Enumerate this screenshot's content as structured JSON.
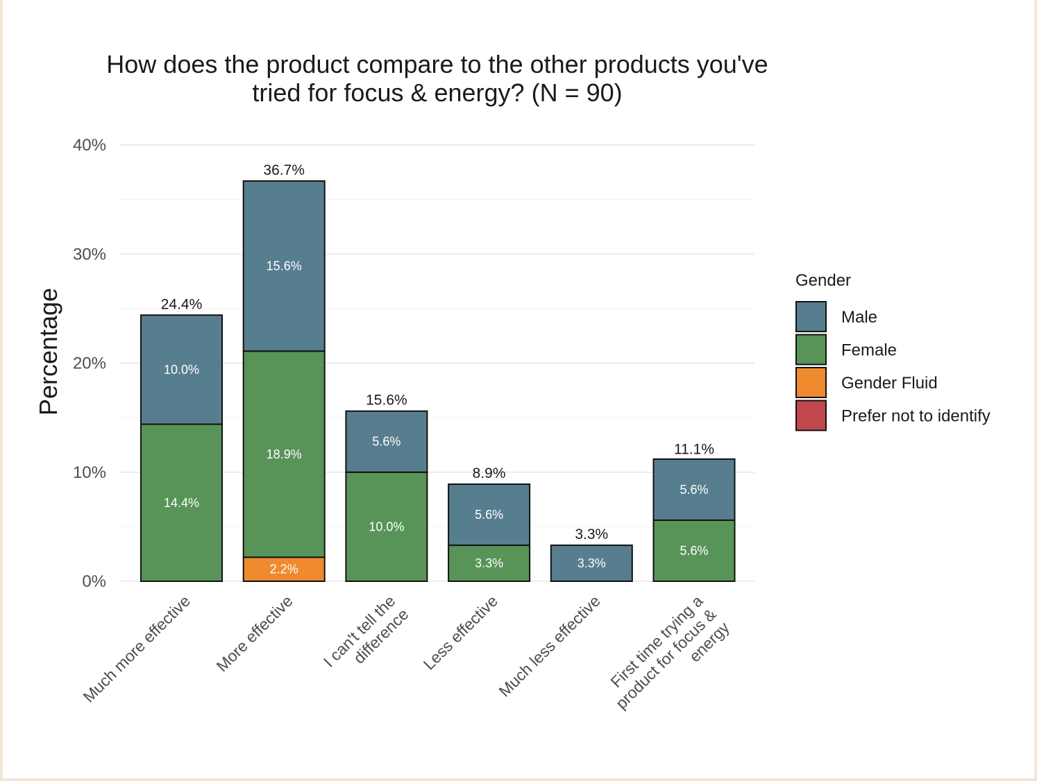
{
  "chart_data": {
    "type": "bar",
    "stacked": true,
    "title_lines": [
      "How does the product compare to the other products you've",
      "tried for focus & energy? (N = 90)"
    ],
    "ylabel": "Percentage",
    "xlabel": "",
    "ylim": [
      0,
      40
    ],
    "yticks": [
      0,
      10,
      20,
      30,
      40
    ],
    "ytick_labels": [
      "0%",
      "10%",
      "20%",
      "30%",
      "40%"
    ],
    "grid": true,
    "categories": [
      [
        "Much more effective"
      ],
      [
        "More effective"
      ],
      [
        "I can't tell the",
        "difference"
      ],
      [
        "Less effective"
      ],
      [
        "Much less effective"
      ],
      [
        "First time trying a",
        "product for focus &",
        "energy"
      ]
    ],
    "series": [
      {
        "name": "Prefer not to identify",
        "color": "#c0484c",
        "values": [
          0,
          0,
          0,
          0,
          0,
          0
        ],
        "labels": [
          "",
          "",
          "",
          "",
          "",
          ""
        ]
      },
      {
        "name": "Gender Fluid",
        "color": "#ef8a2e",
        "values": [
          0,
          2.2,
          0,
          0,
          0,
          0
        ],
        "labels": [
          "",
          "2.2%",
          "",
          "",
          "",
          ""
        ]
      },
      {
        "name": "Female",
        "color": "#589458",
        "values": [
          14.4,
          18.9,
          10.0,
          3.3,
          0,
          5.6
        ],
        "labels": [
          "14.4%",
          "18.9%",
          "10.0%",
          "3.3%",
          "",
          "5.6%"
        ]
      },
      {
        "name": "Male",
        "color": "#577e8e",
        "values": [
          10.0,
          15.6,
          5.6,
          5.6,
          3.3,
          5.6
        ],
        "labels": [
          "10.0%",
          "15.6%",
          "5.6%",
          "5.6%",
          "3.3%",
          "5.6%"
        ]
      }
    ],
    "totals": [
      24.4,
      36.7,
      15.6,
      8.9,
      3.3,
      11.1
    ],
    "total_labels": [
      "24.4%",
      "36.7%",
      "15.6%",
      "8.9%",
      "3.3%",
      "11.1%"
    ],
    "legend": {
      "title": "Gender",
      "position": "right",
      "entries": [
        {
          "label": "Male",
          "color": "#577e8e"
        },
        {
          "label": "Female",
          "color": "#589458"
        },
        {
          "label": "Gender Fluid",
          "color": "#ef8a2e"
        },
        {
          "label": "Prefer not to identify",
          "color": "#c0484c"
        }
      ]
    }
  }
}
